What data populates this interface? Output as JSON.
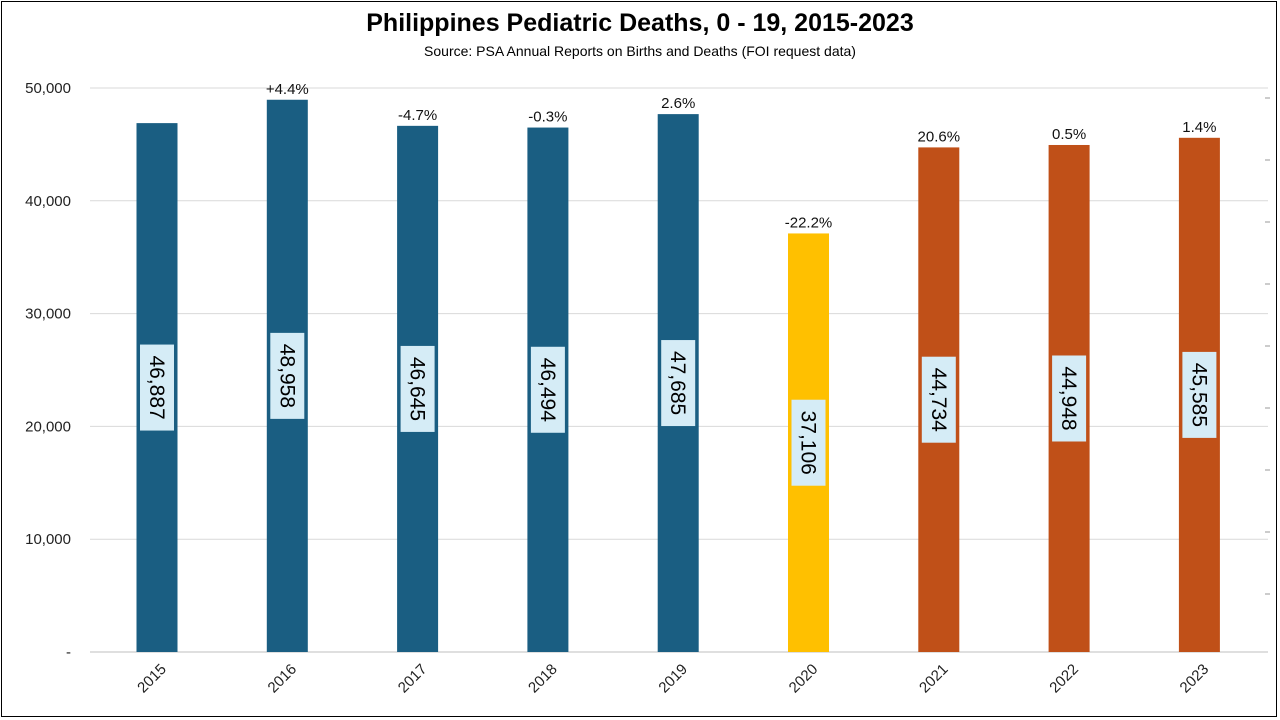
{
  "chart_data": {
    "type": "bar",
    "title": "Philippines Pediatric Deaths, 0 - 19, 2015-2023",
    "subtitle": "Source: PSA Annual Reports on Births and Deaths (FOI request data)",
    "categories": [
      "2015",
      "2016",
      "2017",
      "2018",
      "2019",
      "2020",
      "2021",
      "2022",
      "2023"
    ],
    "values": [
      46887,
      48958,
      46645,
      46494,
      47685,
      37106,
      44734,
      44948,
      45585
    ],
    "value_labels": [
      "46,887",
      "48,958",
      "46,645",
      "46,494",
      "47,685",
      "37,106",
      "44,734",
      "44,948",
      "45,585"
    ],
    "change_labels": [
      "",
      "+4.4%",
      "-4.7%",
      "-0.3%",
      "2.6%",
      "-22.2%",
      "20.6%",
      "0.5%",
      "1.4%"
    ],
    "bar_colors": [
      "#1a5e82",
      "#1a5e82",
      "#1a5e82",
      "#1a5e82",
      "#1a5e82",
      "#ffc000",
      "#c05018",
      "#c05018",
      "#c05018"
    ],
    "value_label_background": "#d5ecf6",
    "ylim": [
      0,
      50000
    ],
    "yticks": [
      0,
      10000,
      20000,
      30000,
      40000,
      50000
    ],
    "ytick_labels": [
      "-",
      "10,000",
      "20,000",
      "30,000",
      "40,000",
      "50,000"
    ],
    "grid": true,
    "legend": "none"
  }
}
